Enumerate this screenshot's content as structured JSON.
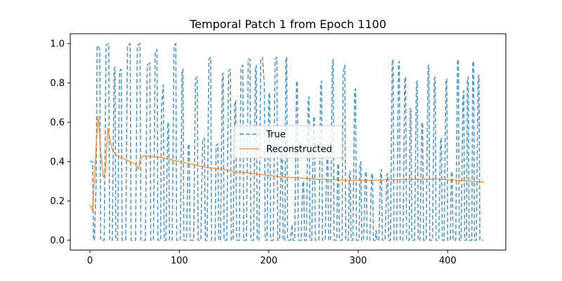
{
  "chart_data": {
    "type": "line",
    "title": "Temporal Patch 1 from Epoch 1100",
    "xlabel": "",
    "ylabel": "",
    "xlim": [
      -22,
      465
    ],
    "ylim": [
      -0.05,
      1.05
    ],
    "xticks": [
      0,
      100,
      200,
      300,
      400
    ],
    "yticks": [
      0.0,
      0.2,
      0.4,
      0.6,
      0.8,
      1.0
    ],
    "xtick_labels": [
      "0",
      "100",
      "200",
      "300",
      "400"
    ],
    "ytick_labels": [
      "0.0",
      "0.2",
      "0.4",
      "0.6",
      "0.8",
      "1.0"
    ],
    "legend_position": "center-right",
    "grid": false,
    "series": [
      {
        "name": "True",
        "style": "dashed",
        "color": "#1f77b4",
        "points": [
          [
            0,
            0.4
          ],
          [
            3,
            0.4
          ],
          [
            4,
            0.0
          ],
          [
            5,
            0.0
          ],
          [
            7,
            0.3
          ],
          [
            8,
            0.98
          ],
          [
            9,
            0.99
          ],
          [
            11,
            0.97
          ],
          [
            12,
            0.0
          ],
          [
            15,
            0.0
          ],
          [
            16,
            0.0
          ],
          [
            18,
            0.99
          ],
          [
            21,
            1.0
          ],
          [
            22,
            0.0
          ],
          [
            24,
            0.0
          ],
          [
            25,
            0.0
          ],
          [
            27,
            0.87
          ],
          [
            28,
            0.88
          ],
          [
            29,
            0.0
          ],
          [
            31,
            0.0
          ],
          [
            33,
            0.86
          ],
          [
            35,
            0.87
          ],
          [
            36,
            0.0
          ],
          [
            40,
            0.0
          ],
          [
            42,
            0.99
          ],
          [
            45,
            1.0
          ],
          [
            46,
            0.0
          ],
          [
            49,
            0.0
          ],
          [
            51,
            0.0
          ],
          [
            53,
            0.99
          ],
          [
            56,
            1.0
          ],
          [
            57,
            0.0
          ],
          [
            62,
            0.0
          ],
          [
            64,
            0.89
          ],
          [
            67,
            0.9
          ],
          [
            68,
            0.0
          ],
          [
            71,
            0.0
          ],
          [
            73,
            0.96
          ],
          [
            75,
            0.97
          ],
          [
            76,
            0.0
          ],
          [
            79,
            0.0
          ],
          [
            80,
            0.68
          ],
          [
            82,
            0.79
          ],
          [
            83,
            0.0
          ],
          [
            85,
            0.0
          ],
          [
            87,
            0.6
          ],
          [
            88,
            0.59
          ],
          [
            89,
            0.0
          ],
          [
            92,
            0.0
          ],
          [
            94,
            0.99
          ],
          [
            96,
            1.0
          ],
          [
            97,
            0.0
          ],
          [
            101,
            0.0
          ],
          [
            103,
            0.86
          ],
          [
            104,
            0.87
          ],
          [
            105,
            0.0
          ],
          [
            108,
            0.0
          ],
          [
            110,
            0.48
          ],
          [
            111,
            0.49
          ],
          [
            112,
            0.0
          ],
          [
            116,
            0.0
          ],
          [
            118,
            0.82
          ],
          [
            120,
            0.83
          ],
          [
            121,
            0.0
          ],
          [
            124,
            0.0
          ],
          [
            126,
            0.51
          ],
          [
            128,
            0.52
          ],
          [
            129,
            0.0
          ],
          [
            131,
            0.0
          ],
          [
            133,
            0.92
          ],
          [
            135,
            0.93
          ],
          [
            136,
            0.0
          ],
          [
            140,
            0.0
          ],
          [
            141,
            0.48
          ],
          [
            143,
            0.49
          ],
          [
            144,
            0.0
          ],
          [
            146,
            0.0
          ],
          [
            148,
            0.84
          ],
          [
            149,
            0.85
          ],
          [
            150,
            0.0
          ],
          [
            153,
            0.0
          ],
          [
            155,
            0.86
          ],
          [
            157,
            0.87
          ],
          [
            158,
            0.0
          ],
          [
            160,
            0.0
          ],
          [
            162,
            0.7
          ],
          [
            163,
            0.71
          ],
          [
            164,
            0.0
          ],
          [
            167,
            0.0
          ],
          [
            169,
            0.88
          ],
          [
            171,
            0.89
          ],
          [
            172,
            0.0
          ],
          [
            175,
            0.0
          ],
          [
            177,
            0.92
          ],
          [
            179,
            0.92
          ],
          [
            180,
            0.0
          ],
          [
            183,
            0.0
          ],
          [
            185,
            0.88
          ],
          [
            186,
            0.89
          ],
          [
            187,
            0.0
          ],
          [
            189,
            0.0
          ],
          [
            191,
            0.92
          ],
          [
            193,
            0.93
          ],
          [
            194,
            0.85
          ],
          [
            195,
            0.8
          ],
          [
            196,
            0.0
          ],
          [
            198,
            0.0
          ],
          [
            200,
            0.74
          ],
          [
            201,
            0.75
          ],
          [
            202,
            0.0
          ],
          [
            205,
            0.0
          ],
          [
            207,
            0.92
          ],
          [
            209,
            0.93
          ],
          [
            210,
            0.0
          ],
          [
            212,
            0.0
          ],
          [
            214,
            0.44
          ],
          [
            215,
            0.45
          ],
          [
            216,
            0.0
          ],
          [
            218,
            0.0
          ],
          [
            219,
            0.92
          ],
          [
            220,
            0.93
          ],
          [
            221,
            0.0
          ],
          [
            224,
            0.0
          ],
          [
            226,
            0.08
          ],
          [
            227,
            0.0
          ],
          [
            229,
            0.0
          ],
          [
            231,
            0.8
          ],
          [
            232,
            0.81
          ],
          [
            233,
            0.0
          ],
          [
            236,
            0.0
          ],
          [
            238,
            0.3
          ],
          [
            239,
            0.29
          ],
          [
            240,
            0.0
          ],
          [
            242,
            0.0
          ],
          [
            244,
            0.72
          ],
          [
            245,
            0.73
          ],
          [
            246,
            0.0
          ],
          [
            248,
            0.0
          ],
          [
            250,
            0.62
          ],
          [
            251,
            0.63
          ],
          [
            252,
            0.0
          ],
          [
            256,
            0.0
          ],
          [
            258,
            0.8
          ],
          [
            259,
            0.81
          ],
          [
            260,
            0.0
          ],
          [
            263,
            0.0
          ],
          [
            265,
            0.42
          ],
          [
            266,
            0.43
          ],
          [
            267,
            0.0
          ],
          [
            269,
            0.0
          ],
          [
            271,
            0.9
          ],
          [
            272,
            0.92
          ],
          [
            273,
            0.0
          ],
          [
            276,
            0.0
          ],
          [
            277,
            0.38
          ],
          [
            278,
            0.39
          ],
          [
            279,
            0.0
          ],
          [
            282,
            0.0
          ],
          [
            283,
            0.85
          ],
          [
            285,
            0.89
          ],
          [
            286,
            0.0
          ],
          [
            289,
            0.0
          ],
          [
            290,
            0.34
          ],
          [
            291,
            0.35
          ],
          [
            292,
            0.0
          ],
          [
            294,
            0.0
          ],
          [
            296,
            0.76
          ],
          [
            297,
            0.77
          ],
          [
            298,
            0.0
          ],
          [
            301,
            0.0
          ],
          [
            302,
            0.39
          ],
          [
            303,
            0.4
          ],
          [
            304,
            0.0
          ],
          [
            306,
            0.0
          ],
          [
            308,
            0.34
          ],
          [
            309,
            0.35
          ],
          [
            310,
            0.0
          ],
          [
            313,
            0.0
          ],
          [
            315,
            0.34
          ],
          [
            316,
            0.33
          ],
          [
            317,
            0.0
          ],
          [
            319,
            0.0
          ],
          [
            320,
            0.05
          ],
          [
            321,
            0.0
          ],
          [
            323,
            0.0
          ],
          [
            325,
            0.35
          ],
          [
            326,
            0.36
          ],
          [
            327,
            0.0
          ],
          [
            330,
            0.0
          ],
          [
            332,
            0.33
          ],
          [
            333,
            0.34
          ],
          [
            334,
            0.0
          ],
          [
            336,
            0.0
          ],
          [
            338,
            0.91
          ],
          [
            339,
            0.92
          ],
          [
            340,
            0.0
          ],
          [
            343,
            0.0
          ],
          [
            345,
            0.9
          ],
          [
            346,
            0.91
          ],
          [
            347,
            0.0
          ],
          [
            350,
            0.0
          ],
          [
            352,
            0.82
          ],
          [
            353,
            0.83
          ],
          [
            354,
            0.0
          ],
          [
            357,
            0.0
          ],
          [
            358,
            0.67
          ],
          [
            359,
            0.66
          ],
          [
            360,
            0.0
          ],
          [
            363,
            0.0
          ],
          [
            365,
            0.8
          ],
          [
            366,
            0.81
          ],
          [
            367,
            0.0
          ],
          [
            369,
            0.0
          ],
          [
            371,
            0.59
          ],
          [
            372,
            0.6
          ],
          [
            373,
            0.0
          ],
          [
            376,
            0.0
          ],
          [
            378,
            0.88
          ],
          [
            379,
            0.89
          ],
          [
            380,
            0.0
          ],
          [
            383,
            0.0
          ],
          [
            385,
            0.82
          ],
          [
            386,
            0.83
          ],
          [
            387,
            0.0
          ],
          [
            390,
            0.0
          ],
          [
            392,
            0.51
          ],
          [
            393,
            0.52
          ],
          [
            394,
            0.0
          ],
          [
            396,
            0.0
          ],
          [
            398,
            0.81
          ],
          [
            399,
            0.82
          ],
          [
            400,
            0.0
          ],
          [
            403,
            0.0
          ],
          [
            404,
            0.34
          ],
          [
            405,
            0.35
          ],
          [
            406,
            0.0
          ],
          [
            409,
            0.0
          ],
          [
            411,
            0.91
          ],
          [
            412,
            0.92
          ],
          [
            413,
            0.0
          ],
          [
            415,
            0.0
          ],
          [
            417,
            0.72
          ],
          [
            418,
            0.76
          ],
          [
            419,
            0.0
          ],
          [
            421,
            0.0
          ],
          [
            422,
            0.82
          ],
          [
            423,
            0.83
          ],
          [
            424,
            0.0
          ],
          [
            427,
            0.0
          ],
          [
            428,
            0.9
          ],
          [
            429,
            0.91
          ],
          [
            430,
            0.0
          ],
          [
            432,
            0.0
          ],
          [
            434,
            0.83
          ],
          [
            435,
            0.84
          ],
          [
            436,
            0.0
          ],
          [
            440,
            0.0
          ]
        ]
      },
      {
        "name": "Reconstructed",
        "style": "solid",
        "color": "#ff7f0e",
        "points": [
          [
            0,
            0.18
          ],
          [
            3,
            0.15
          ],
          [
            6,
            0.4
          ],
          [
            9,
            0.63
          ],
          [
            10,
            0.6
          ],
          [
            12,
            0.45
          ],
          [
            15,
            0.32
          ],
          [
            17,
            0.34
          ],
          [
            20,
            0.57
          ],
          [
            22,
            0.52
          ],
          [
            25,
            0.46
          ],
          [
            30,
            0.43
          ],
          [
            35,
            0.42
          ],
          [
            40,
            0.41
          ],
          [
            45,
            0.4
          ],
          [
            50,
            0.39
          ],
          [
            54,
            0.36
          ],
          [
            56,
            0.41
          ],
          [
            60,
            0.43
          ],
          [
            70,
            0.425
          ],
          [
            80,
            0.42
          ],
          [
            90,
            0.41
          ],
          [
            100,
            0.4
          ],
          [
            110,
            0.39
          ],
          [
            120,
            0.38
          ],
          [
            130,
            0.37
          ],
          [
            140,
            0.365
          ],
          [
            150,
            0.36
          ],
          [
            160,
            0.35
          ],
          [
            170,
            0.345
          ],
          [
            180,
            0.34
          ],
          [
            190,
            0.335
          ],
          [
            200,
            0.33
          ],
          [
            210,
            0.325
          ],
          [
            220,
            0.32
          ],
          [
            230,
            0.318
          ],
          [
            240,
            0.315
          ],
          [
            250,
            0.31
          ],
          [
            260,
            0.31
          ],
          [
            270,
            0.308
          ],
          [
            280,
            0.305
          ],
          [
            290,
            0.305
          ],
          [
            300,
            0.305
          ],
          [
            310,
            0.305
          ],
          [
            320,
            0.305
          ],
          [
            330,
            0.307
          ],
          [
            340,
            0.308
          ],
          [
            350,
            0.31
          ],
          [
            360,
            0.31
          ],
          [
            370,
            0.31
          ],
          [
            380,
            0.31
          ],
          [
            390,
            0.31
          ],
          [
            400,
            0.308
          ],
          [
            410,
            0.305
          ],
          [
            420,
            0.303
          ],
          [
            430,
            0.298
          ],
          [
            441,
            0.295
          ]
        ]
      }
    ]
  }
}
